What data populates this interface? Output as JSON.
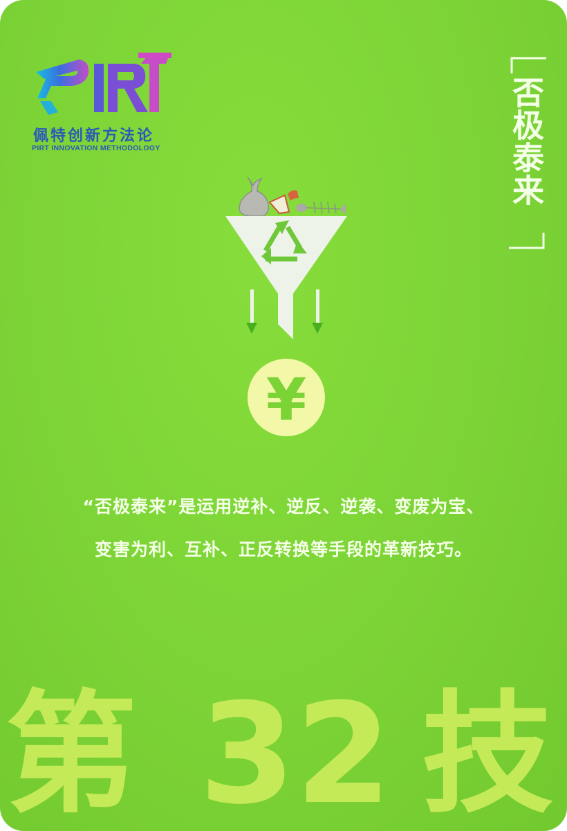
{
  "logo": {
    "mark_text": "PIRT",
    "name": "佩特创新方法论",
    "subtitle": "PIRT INNOVATION METHODOLOGY"
  },
  "card_title": "否极泰来",
  "illustration": {
    "recycle": "recycle-icon",
    "currency_symbol": "¥"
  },
  "description": {
    "line1": "“否极泰来”是运用逆补、逆反、逆袭、变废为宝、",
    "line2": "变害为利、互补、正反转换等手段的革新技巧。"
  },
  "technique_number": {
    "prefix": "第",
    "number": "32",
    "suffix": "技"
  },
  "colors": {
    "background": "#7cd336",
    "accent_text": "#c5ea58",
    "funnel": "#eef3ea",
    "coin": "#f3f7a8",
    "logo_blue": "#2a5ab8"
  }
}
